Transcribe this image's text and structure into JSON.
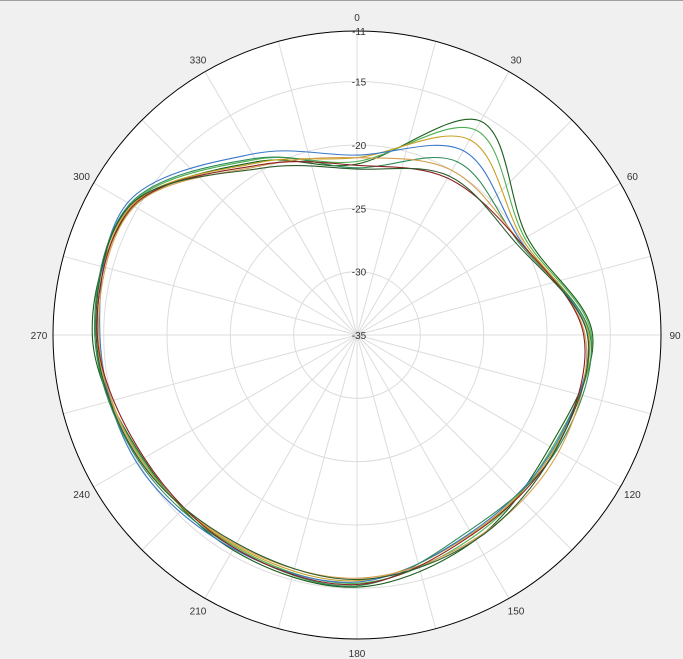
{
  "chart_data": {
    "type": "polar-line",
    "title": "",
    "angle_direction": "clockwise",
    "zero_angle_position": "top",
    "angle_ticks": [
      "0",
      "30",
      "60",
      "90",
      "120",
      "150",
      "180",
      "210",
      "240",
      "270",
      "300",
      "330"
    ],
    "radial_ticks": [
      "-35",
      "-30",
      "-25",
      "-20",
      "-15",
      "-11"
    ],
    "radial_range": [
      -35,
      -11
    ],
    "grid": true,
    "legend": "none",
    "angles_deg": [
      0,
      30,
      60,
      90,
      120,
      150,
      180,
      210,
      240,
      270,
      300,
      330
    ],
    "series": [
      {
        "color": "#1a5e1a",
        "values": [
          -21.5,
          -15.5,
          -19.5,
          -16.4,
          -17.4,
          -16.3,
          -15.1,
          -15.4,
          -15.5,
          -14.1,
          -14.7,
          -19.2
        ]
      },
      {
        "color": "#4caf50",
        "values": [
          -21.3,
          -16.3,
          -19.7,
          -16.5,
          -17.2,
          -16.6,
          -15.4,
          -15.7,
          -15.4,
          -14.3,
          -14.4,
          -19.0
        ]
      },
      {
        "color": "#c8a020",
        "values": [
          -21.0,
          -17.2,
          -19.9,
          -16.7,
          -17.0,
          -16.9,
          -15.6,
          -15.8,
          -15.3,
          -14.5,
          -14.5,
          -19.3
        ]
      },
      {
        "color": "#3a78c8",
        "values": [
          -20.8,
          -18.2,
          -20.1,
          -16.8,
          -17.1,
          -17.0,
          -15.5,
          -15.5,
          -14.9,
          -14.7,
          -14.1,
          -18.5
        ]
      },
      {
        "color": "#2e8b57",
        "values": [
          -21.8,
          -19.2,
          -20.3,
          -16.6,
          -16.8,
          -17.2,
          -15.2,
          -15.6,
          -15.1,
          -14.3,
          -14.3,
          -18.9
        ]
      },
      {
        "color": "#d4a050",
        "values": [
          -21.0,
          -20.0,
          -20.2,
          -17.0,
          -16.6,
          -16.4,
          -15.8,
          -15.9,
          -15.3,
          -14.6,
          -14.7,
          -19.6
        ]
      },
      {
        "color": "#8b2020",
        "values": [
          -21.6,
          -20.7,
          -20.2,
          -17.1,
          -16.9,
          -16.8,
          -15.3,
          -15.6,
          -15.6,
          -14.5,
          -14.6,
          -19.5
        ]
      },
      {
        "color": "#2d5a2d",
        "values": [
          -21.9,
          -20.5,
          -20.5,
          -16.8,
          -16.9,
          -16.3,
          -15.7,
          -16.0,
          -15.2,
          -14.4,
          -14.4,
          -19.8
        ]
      }
    ]
  }
}
